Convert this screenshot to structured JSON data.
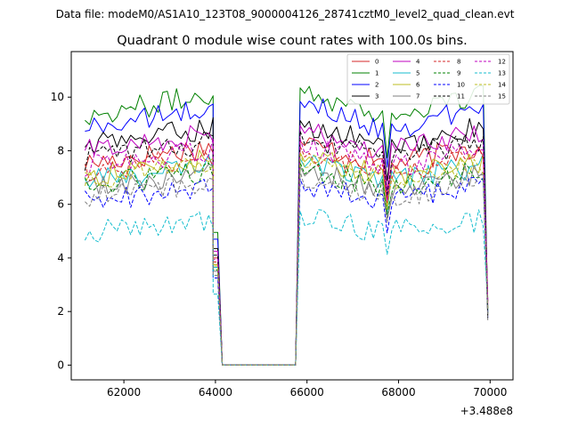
{
  "chart_data": {
    "type": "line",
    "suptitle": "Data file: modeM0/AS1A10_123T08_9000004126_28741cztM0_level2_quad_clean.evt",
    "title": "Quadrant 0 module wise count rates with 100.0s bins.",
    "xlabel": "",
    "ylabel": "",
    "x_offset_label": "+3.488e8",
    "xlim": [
      60850,
      70500
    ],
    "ylim": [
      -0.55,
      11.7
    ],
    "x_ticks": [
      62000,
      64000,
      66000,
      68000,
      70000
    ],
    "x_tick_labels": [
      "62000",
      "64000",
      "66000",
      "68000",
      "70000"
    ],
    "y_ticks": [
      0,
      2,
      4,
      6,
      8,
      10
    ],
    "y_tick_labels": [
      "0",
      "2",
      "4",
      "6",
      "8",
      "10"
    ],
    "legend_position": "top-right",
    "x_start": 61150,
    "bin_size": 100,
    "segments": [
      {
        "start": 61150,
        "end": 63950,
        "shape": "rising"
      },
      {
        "start": 63950,
        "end": 64150,
        "shape": "drop"
      },
      {
        "start": 64150,
        "end": 65750,
        "shape": "zero"
      },
      {
        "start": 65850,
        "end": 67650,
        "shape": "decay"
      },
      {
        "start": 67750,
        "end": 67750,
        "shape": "dip"
      },
      {
        "start": 67850,
        "end": 69850,
        "shape": "rising"
      },
      {
        "start": 69950,
        "end": 69950,
        "shape": "drop"
      }
    ],
    "series": [
      {
        "name": "0",
        "color": "#d62728",
        "dashed": false,
        "level": 8.0
      },
      {
        "name": "1",
        "color": "#008000",
        "dashed": false,
        "level": 9.9
      },
      {
        "name": "2",
        "color": "#0000ff",
        "dashed": false,
        "level": 9.4
      },
      {
        "name": "3",
        "color": "#000000",
        "dashed": false,
        "level": 8.7
      },
      {
        "name": "4",
        "color": "#bf00bf",
        "dashed": false,
        "level": 8.5
      },
      {
        "name": "5",
        "color": "#17becf",
        "dashed": false,
        "level": 7.3
      },
      {
        "name": "6",
        "color": "#bcbd22",
        "dashed": false,
        "level": 7.5
      },
      {
        "name": "7",
        "color": "#7f7f7f",
        "dashed": false,
        "level": 7.0
      },
      {
        "name": "8",
        "color": "#d62728",
        "dashed": true,
        "level": 7.7
      },
      {
        "name": "9",
        "color": "#008000",
        "dashed": true,
        "level": 7.1
      },
      {
        "name": "10",
        "color": "#0000ff",
        "dashed": true,
        "level": 6.5
      },
      {
        "name": "11",
        "color": "#000000",
        "dashed": true,
        "level": 8.2
      },
      {
        "name": "12",
        "color": "#bf00bf",
        "dashed": true,
        "level": 7.9
      },
      {
        "name": "13",
        "color": "#17becf",
        "dashed": true,
        "level": 5.3
      },
      {
        "name": "14",
        "color": "#bcbd22",
        "dashed": true,
        "level": 7.4
      },
      {
        "name": "15",
        "color": "#7f7f7f",
        "dashed": true,
        "level": 6.7
      }
    ]
  }
}
